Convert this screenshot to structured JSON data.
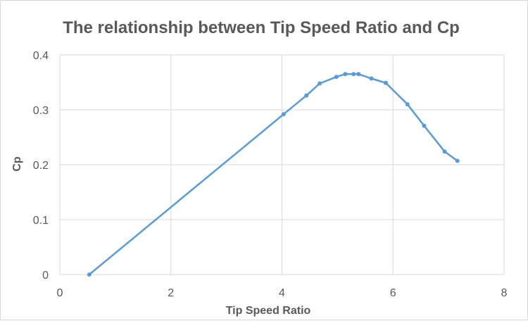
{
  "chart_data": {
    "type": "scatter",
    "title": "The relationship between Tip Speed Ratio and Cp",
    "xlabel": "Tip Speed Ratio",
    "ylabel": "Cp",
    "xlim": [
      0,
      8
    ],
    "ylim": [
      0,
      0.4
    ],
    "x_ticks": [
      "0",
      "2",
      "4",
      "6",
      "8"
    ],
    "y_ticks": [
      "0",
      "0.1",
      "0.2",
      "0.3",
      "0.4"
    ],
    "grid": true,
    "legend": "none",
    "line_color": "#5b9bd5",
    "series": [
      {
        "x": [
          0.53,
          4.03,
          4.44,
          4.68,
          4.98,
          5.14,
          5.29,
          5.38,
          5.61,
          5.87,
          6.26,
          6.56,
          6.93,
          7.16
        ],
        "y": [
          0.0,
          0.292,
          0.326,
          0.348,
          0.36,
          0.365,
          0.365,
          0.365,
          0.357,
          0.349,
          0.31,
          0.271,
          0.224,
          0.207
        ]
      }
    ]
  }
}
